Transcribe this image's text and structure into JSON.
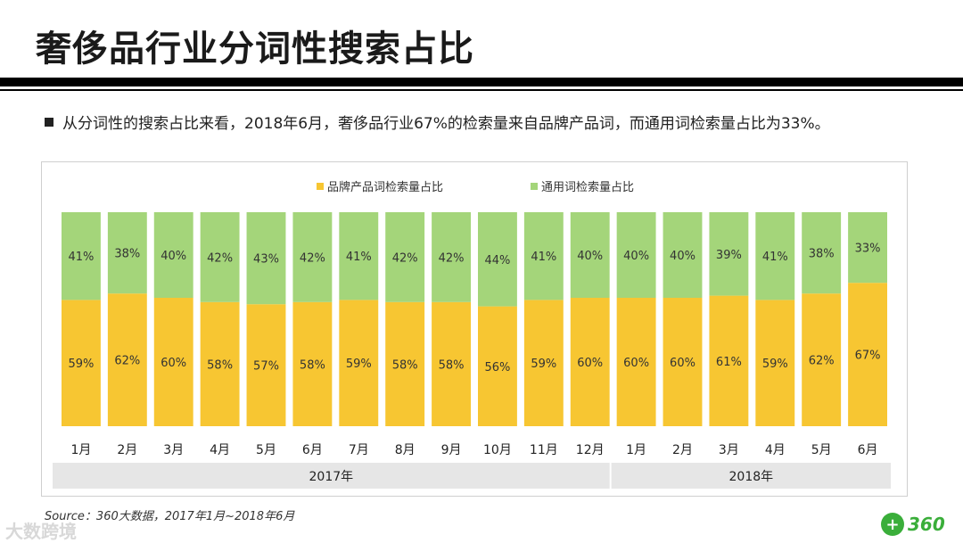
{
  "title": "奢侈品行业分词性搜索占比",
  "bullet": "从分词性的搜索占比来看，2018年6月，奢侈品行业67%的检索量来自品牌产品词，而通用词检索量占比为33%。",
  "source": "Source：360大数据，2017年1月~2018年6月",
  "watermark": "大数跨境",
  "logo": {
    "mark": "+",
    "text": "360"
  },
  "colors": {
    "brand": "#F7C632",
    "generic": "#A4D57A",
    "year_band": "#E6E6E6"
  },
  "chart_data": {
    "type": "bar",
    "stacked": true,
    "normalized": true,
    "categories": [
      "1月",
      "2月",
      "3月",
      "4月",
      "5月",
      "6月",
      "7月",
      "8月",
      "9月",
      "10月",
      "11月",
      "12月",
      "1月",
      "2月",
      "3月",
      "4月",
      "5月",
      "6月"
    ],
    "series": [
      {
        "name": "品牌产品词检索量占比",
        "values": [
          59,
          62,
          60,
          58,
          57,
          58,
          59,
          58,
          58,
          56,
          59,
          60,
          60,
          60,
          61,
          59,
          62,
          67
        ]
      },
      {
        "name": "通用词检索量占比",
        "values": [
          41,
          38,
          40,
          42,
          43,
          42,
          41,
          42,
          42,
          44,
          41,
          40,
          40,
          40,
          39,
          41,
          38,
          33
        ]
      }
    ],
    "groups": [
      {
        "label": "2017年",
        "count": 12
      },
      {
        "label": "2018年",
        "count": 6
      }
    ],
    "ylim": [
      0,
      100
    ],
    "value_suffix": "%",
    "legend": "top-center"
  }
}
